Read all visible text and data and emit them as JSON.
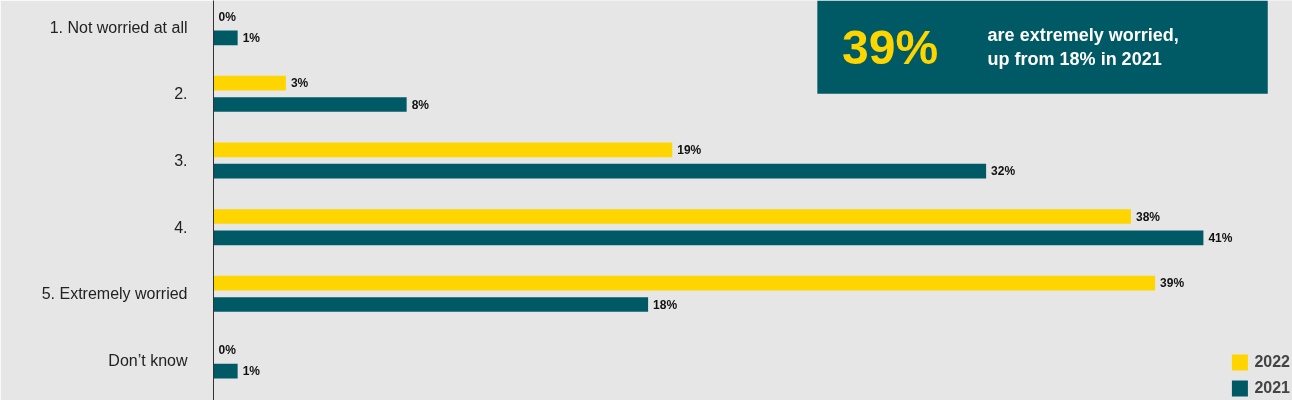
{
  "chart_data": {
    "type": "bar",
    "orientation": "horizontal",
    "categories": [
      "1. Not worried at all",
      "2.",
      "3.",
      "4.",
      "5. Extremely worried",
      "Don’t know"
    ],
    "series": [
      {
        "name": "2022",
        "color": "#ffd500",
        "values": [
          0,
          3,
          19,
          38,
          39,
          0
        ],
        "value_labels": [
          "0%",
          "3%",
          "19%",
          "38%",
          "39%",
          "0%"
        ]
      },
      {
        "name": "2021",
        "color": "#005a66",
        "values": [
          1,
          8,
          32,
          41,
          18,
          1
        ],
        "value_labels": [
          "1%",
          "8%",
          "32%",
          "41%",
          "18%",
          "1%"
        ]
      }
    ],
    "annotations": [
      "39%",
      "are extremely worried,\nup from 18% in 2021"
    ],
    "legend": "bottom right"
  }
}
